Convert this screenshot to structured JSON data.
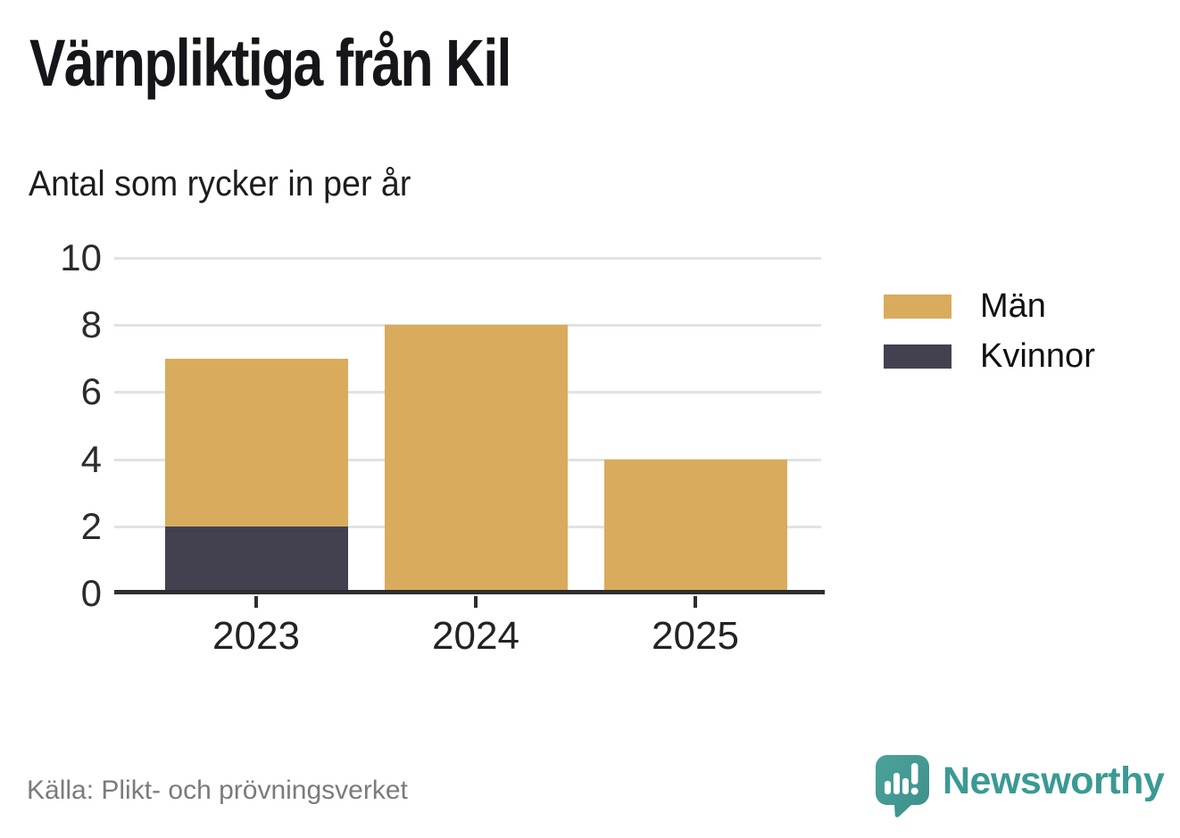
{
  "header": {
    "title": "Värnpliktiga från Kil",
    "subtitle": "Antal som rycker in per år"
  },
  "chart_data": {
    "type": "bar",
    "stacked": true,
    "title": "Värnpliktiga från Kil",
    "subtitle": "Antal som rycker in per år",
    "categories": [
      "2023",
      "2024",
      "2025"
    ],
    "series": [
      {
        "name": "Män",
        "color": "#d9ab5c",
        "values": [
          5,
          8,
          4
        ]
      },
      {
        "name": "Kvinnor",
        "color": "#434050",
        "values": [
          2,
          0,
          0
        ]
      }
    ],
    "stack_bottom_to_top": [
      "Kvinnor",
      "Män"
    ],
    "stacked_totals": [
      7,
      8,
      4
    ],
    "xlabel": "",
    "ylabel": "",
    "ylim": [
      0,
      10
    ],
    "yticks": [
      0,
      2,
      4,
      6,
      8,
      10
    ],
    "grid": true,
    "legend_position": "right"
  },
  "legend": {
    "items": [
      {
        "label": "Män",
        "color": "#d9ab5c"
      },
      {
        "label": "Kvinnor",
        "color": "#434050"
      }
    ]
  },
  "footer": {
    "source": "Källa: Plikt- och prövningsverket",
    "brand": "Newsworthy"
  },
  "colors": {
    "men": "#d9ab5c",
    "women": "#434050",
    "brand_teal": "#3a9a93",
    "gridline": "#e2e2e2",
    "axis": "#2e2e2e",
    "source_text": "#7b7b7b"
  }
}
